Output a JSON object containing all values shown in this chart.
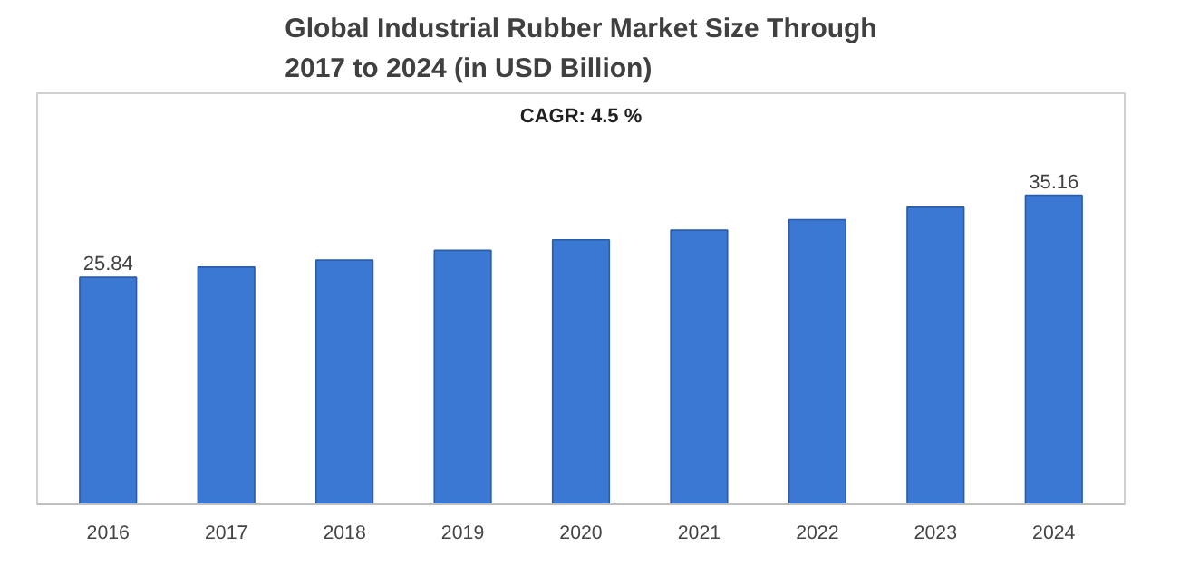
{
  "chart_data": {
    "type": "bar",
    "title": "Global Industrial Rubber Market Size Through\n2017 to 2024 (in USD Billion)",
    "categories": [
      "2016",
      "2017",
      "2018",
      "2019",
      "2020",
      "2021",
      "2022",
      "2023",
      "2024"
    ],
    "values": [
      25.84,
      27.0,
      27.8,
      28.9,
      30.1,
      31.2,
      32.4,
      33.8,
      35.16
    ],
    "value_labels": [
      "25.84",
      null,
      null,
      null,
      null,
      null,
      null,
      null,
      "35.16"
    ],
    "color": "#3a78d4",
    "annotations": [
      "CAGR: 4.5 %"
    ],
    "grid": false
  }
}
